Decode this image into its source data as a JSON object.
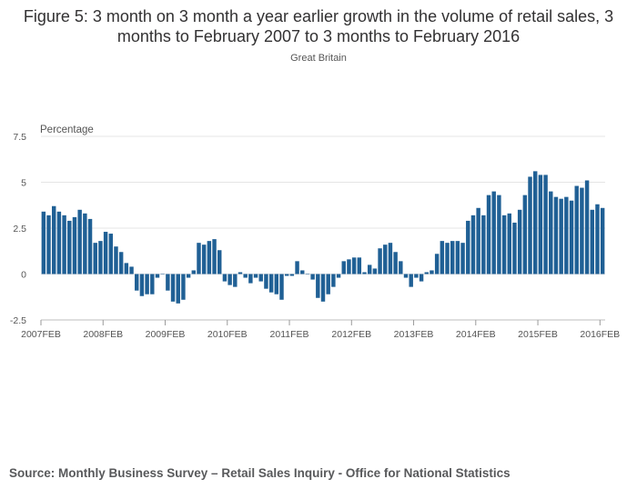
{
  "title": "Figure 5: 3 month on 3 month a year earlier growth in the volume of retail sales, 3 months to February 2007 to 3 months to February 2016",
  "subtitle": "Great Britain",
  "source": "Source: Monthly Business Survey – Retail Sales Inquiry - Office for National Statistics",
  "chart_data": {
    "type": "bar",
    "title": "Figure 5: 3 month on 3 month a year earlier growth in the volume of retail sales, 3 months to February 2007 to 3 months to February 2016",
    "subtitle": "Great Britain",
    "xlabel": "",
    "ylabel": "Percentage",
    "ylim": [
      -2.5,
      7.5
    ],
    "yticks": [
      -2.5,
      0,
      2.5,
      5,
      7.5
    ],
    "ytick_labels": [
      "-2.5",
      "0",
      "2.5",
      "5",
      "7.5"
    ],
    "xtick_labels": [
      "2007FEB",
      "2008FEB",
      "2009FEB",
      "2010FEB",
      "2011FEB",
      "2012FEB",
      "2013FEB",
      "2014FEB",
      "2015FEB",
      "2016FEB"
    ],
    "xtick_index": [
      0,
      12,
      24,
      36,
      48,
      60,
      72,
      84,
      96,
      108
    ],
    "bar_color": "#206095",
    "grid": true,
    "categories_note": "monthly periods, 3 months to 2007FEB through 3 months to 2016FEB",
    "values": [
      3.4,
      3.2,
      3.7,
      3.4,
      3.2,
      2.9,
      3.1,
      3.5,
      3.3,
      3.0,
      1.7,
      1.8,
      2.3,
      2.2,
      1.5,
      1.2,
      0.6,
      0.4,
      -0.9,
      -1.2,
      -1.1,
      -1.1,
      -0.2,
      0.0,
      -0.9,
      -1.5,
      -1.6,
      -1.4,
      -0.2,
      0.2,
      1.7,
      1.6,
      1.8,
      1.9,
      1.3,
      -0.4,
      -0.6,
      -0.7,
      0.1,
      -0.2,
      -0.5,
      -0.2,
      -0.4,
      -0.8,
      -1.0,
      -1.1,
      -1.4,
      -0.1,
      -0.1,
      0.7,
      0.2,
      0.0,
      -0.3,
      -1.3,
      -1.5,
      -1.1,
      -0.7,
      -0.2,
      0.7,
      0.8,
      0.9,
      0.9,
      0.1,
      0.5,
      0.3,
      1.4,
      1.6,
      1.7,
      1.2,
      0.7,
      -0.2,
      -0.7,
      -0.2,
      -0.4,
      0.1,
      0.2,
      1.1,
      1.8,
      1.7,
      1.8,
      1.8,
      1.7,
      2.9,
      3.2,
      3.6,
      3.2,
      4.3,
      4.5,
      4.3,
      3.2,
      3.3,
      2.8,
      3.5,
      4.3,
      5.3,
      5.6,
      5.4,
      5.4,
      4.5,
      4.2,
      4.1,
      4.2,
      4.0,
      4.8,
      4.7,
      5.1,
      3.5,
      3.8,
      3.6
    ]
  }
}
